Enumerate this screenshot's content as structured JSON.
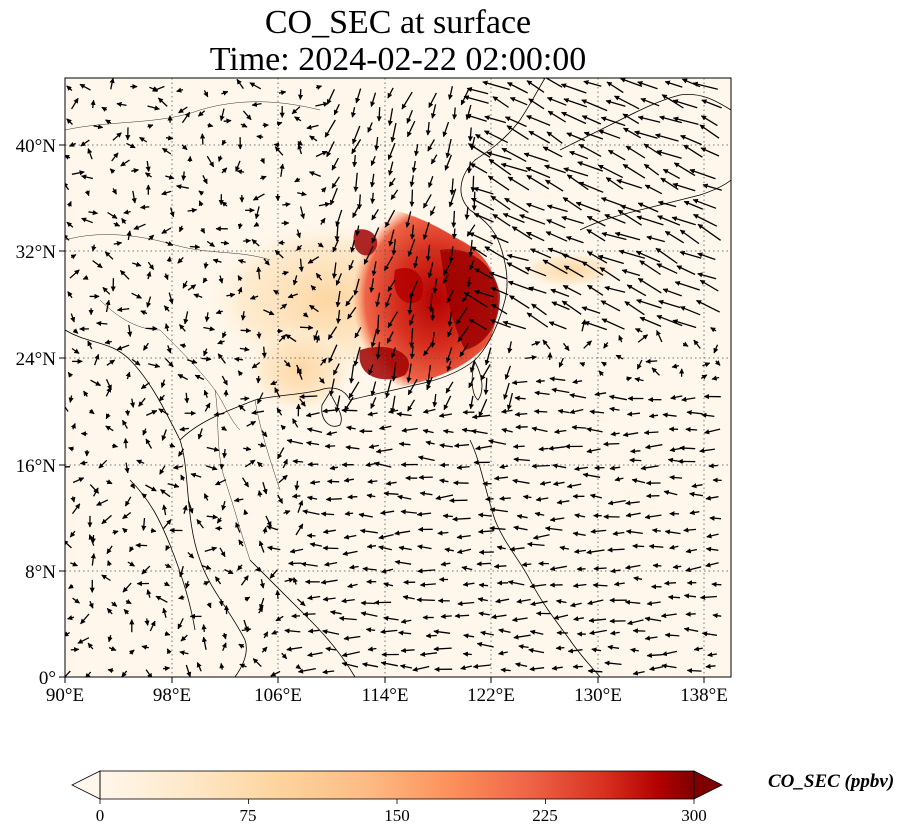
{
  "title": "CO_SEC at surface",
  "subtitle": "Time: 2024-02-22 02:00:00",
  "map": {
    "projection": "PlateCarree",
    "lon_range": [
      90,
      140
    ],
    "lat_range": [
      0,
      45
    ],
    "x_ticks": [
      "90°E",
      "98°E",
      "106°E",
      "114°E",
      "122°E",
      "130°E",
      "138°E"
    ],
    "y_ticks": [
      "0°",
      "8°N",
      "16°N",
      "24°N",
      "32°N",
      "40°N"
    ],
    "gridlines": "dotted",
    "features": [
      "coastlines",
      "country borders",
      "wind vectors"
    ]
  },
  "colorbar": {
    "label": "CO_SEC (ppbv)",
    "colormap": "OrRd",
    "range": [
      0,
      300
    ],
    "extend": "both",
    "ticks": [
      "0",
      "75",
      "150",
      "225",
      "300"
    ]
  },
  "colors": {
    "low": "#fff7ec",
    "mid": "#fc8d59",
    "high": "#7f0000"
  }
}
